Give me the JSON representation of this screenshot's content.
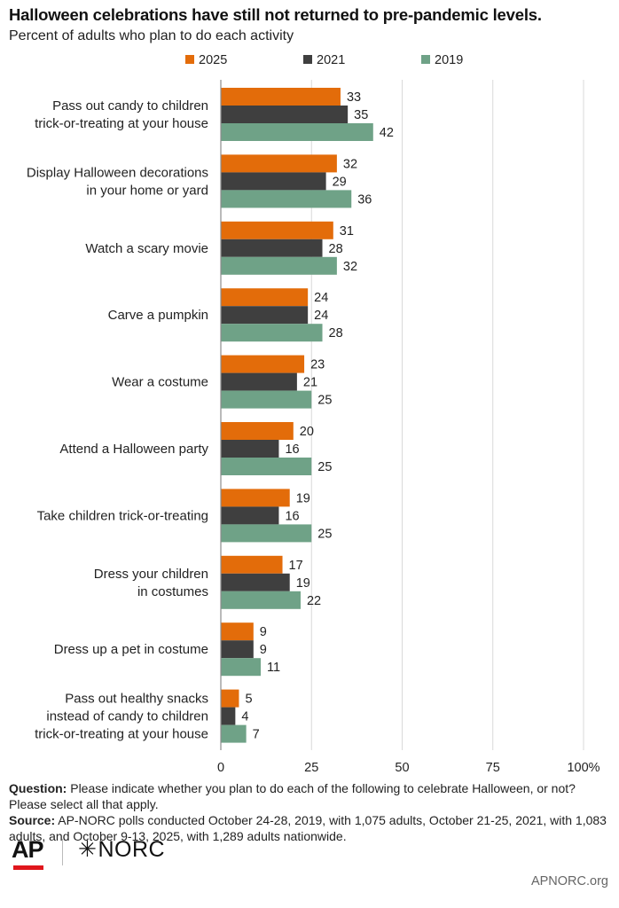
{
  "header": {
    "title": "Halloween celebrations have still not returned to pre-pandemic levels.",
    "subtitle": "Percent of adults who plan to do each activity"
  },
  "colors": {
    "s2025": "#e36c0a",
    "s2021": "#3f3f3f",
    "s2019": "#6fa287",
    "grid": "#d9d9d9",
    "axis": "#8c8c8c"
  },
  "chart_data": {
    "type": "bar",
    "orientation": "horizontal",
    "title": "Halloween celebrations have still not returned to pre-pandemic levels.",
    "subtitle": "Percent of adults who plan to do each activity",
    "categories": [
      [
        "Pass out candy to children",
        "trick-or-treating at your house"
      ],
      [
        "Display Halloween decorations",
        "in your home or yard"
      ],
      [
        "Watch a scary movie"
      ],
      [
        "Carve a pumpkin"
      ],
      [
        "Wear a costume"
      ],
      [
        "Attend a Halloween party"
      ],
      [
        "Take children trick-or-treating"
      ],
      [
        "Dress your children",
        "in costumes"
      ],
      [
        "Dress up a pet in costume"
      ],
      [
        "Pass out healthy snacks",
        "instead of candy to children",
        "trick-or-treating at your house"
      ]
    ],
    "series": [
      {
        "name": "2025",
        "values": [
          33,
          32,
          31,
          24,
          23,
          20,
          19,
          17,
          9,
          5
        ]
      },
      {
        "name": "2021",
        "values": [
          35,
          29,
          28,
          24,
          21,
          16,
          16,
          19,
          9,
          4
        ]
      },
      {
        "name": "2019",
        "values": [
          42,
          36,
          32,
          28,
          25,
          25,
          25,
          22,
          11,
          7
        ]
      }
    ],
    "xlim": [
      0,
      100
    ],
    "xticks": [
      "0",
      "25",
      "50",
      "75",
      "100%"
    ],
    "xtick_values": [
      0,
      25,
      50,
      75,
      100
    ],
    "legend": "top",
    "grid": true
  },
  "notes": {
    "question_label": "Question:",
    "question_text": "Please indicate whether you plan to do each of the following to celebrate Halloween, or not? Please select all that apply.",
    "source_label": "Source:",
    "source_text": "AP-NORC polls conducted October 24-28, 2019, with 1,075 adults, October 21-25, 2021, with 1,083 adults, and October 9-13, 2025, with 1,289 adults nationwide."
  },
  "footer": {
    "ap_logo": "AP",
    "norc_star": "✳",
    "norc_logo": "NORC",
    "url": "APNORC.org"
  }
}
